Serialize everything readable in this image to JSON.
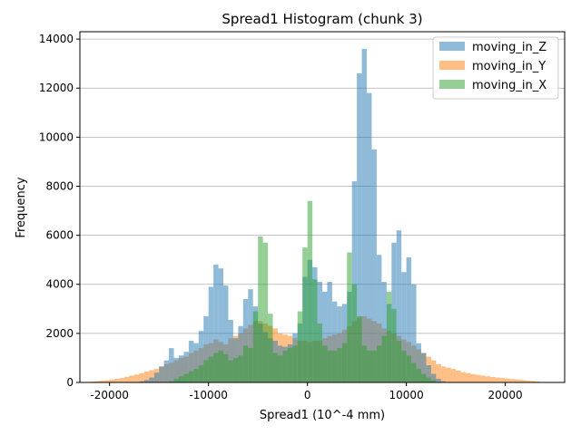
{
  "chart_data": {
    "type": "bar",
    "subtype": "histogram",
    "title": "Spread1 Histogram (chunk 3)",
    "xlabel": "Spread1 (10^-4 mm)",
    "ylabel": "Frequency",
    "xlim": [
      -23000,
      26000
    ],
    "ylim": [
      0,
      14300
    ],
    "xticks": [
      -20000,
      -10000,
      0,
      10000,
      20000
    ],
    "yticks": [
      0,
      2000,
      4000,
      6000,
      8000,
      10000,
      12000,
      14000
    ],
    "grid": "y",
    "legend_position": "top-right",
    "bin_width": 500,
    "series": [
      {
        "name": "moving_in_Z",
        "color": "#1f77b4",
        "opacity": 0.5,
        "bins": [
          [
            -17000,
            50
          ],
          [
            -16500,
            100
          ],
          [
            -16000,
            200
          ],
          [
            -15500,
            400
          ],
          [
            -15000,
            650
          ],
          [
            -14500,
            900
          ],
          [
            -14000,
            1400
          ],
          [
            -13500,
            1000
          ],
          [
            -13000,
            1100
          ],
          [
            -12500,
            1250
          ],
          [
            -12000,
            1700
          ],
          [
            -11500,
            1600
          ],
          [
            -11000,
            2100
          ],
          [
            -10500,
            2700
          ],
          [
            -10000,
            3900
          ],
          [
            -9500,
            4800
          ],
          [
            -9000,
            4650
          ],
          [
            -8500,
            3950
          ],
          [
            -8000,
            2550
          ],
          [
            -7500,
            1800
          ],
          [
            -7000,
            2300
          ],
          [
            -6500,
            3400
          ],
          [
            -6000,
            3800
          ],
          [
            -5500,
            3100
          ],
          [
            -5000,
            2400
          ],
          [
            -4500,
            2050
          ],
          [
            -4000,
            1800
          ],
          [
            -3500,
            1700
          ],
          [
            -3000,
            1500
          ],
          [
            -2500,
            1450
          ],
          [
            -2000,
            1550
          ],
          [
            -1500,
            2000
          ],
          [
            -1000,
            2400
          ],
          [
            -500,
            4300
          ],
          [
            0,
            5000
          ],
          [
            500,
            4700
          ],
          [
            1000,
            4100
          ],
          [
            1500,
            3700
          ],
          [
            2000,
            4100
          ],
          [
            2500,
            3300
          ],
          [
            3000,
            3100
          ],
          [
            3500,
            3200
          ],
          [
            4000,
            3700
          ],
          [
            4500,
            8200
          ],
          [
            5000,
            12600
          ],
          [
            5500,
            13600
          ],
          [
            6000,
            11800
          ],
          [
            6500,
            9500
          ],
          [
            7000,
            5200
          ],
          [
            7500,
            4100
          ],
          [
            8000,
            3200
          ],
          [
            8500,
            5700
          ],
          [
            9000,
            6200
          ],
          [
            9500,
            4500
          ],
          [
            10000,
            5100
          ],
          [
            10500,
            4000
          ],
          [
            11000,
            1600
          ],
          [
            11500,
            1200
          ],
          [
            12000,
            700
          ],
          [
            12500,
            350
          ],
          [
            13000,
            150
          ],
          [
            13500,
            50
          ]
        ]
      },
      {
        "name": "moving_in_Y",
        "color": "#ff7f0e",
        "opacity": 0.5,
        "bins": [
          [
            -22000,
            30
          ],
          [
            -21500,
            50
          ],
          [
            -21000,
            70
          ],
          [
            -20500,
            90
          ],
          [
            -20000,
            120
          ],
          [
            -19500,
            150
          ],
          [
            -19000,
            180
          ],
          [
            -18500,
            230
          ],
          [
            -18000,
            280
          ],
          [
            -17500,
            320
          ],
          [
            -17000,
            380
          ],
          [
            -16500,
            450
          ],
          [
            -16000,
            500
          ],
          [
            -15500,
            550
          ],
          [
            -15000,
            650
          ],
          [
            -14500,
            750
          ],
          [
            -14000,
            800
          ],
          [
            -13500,
            900
          ],
          [
            -13000,
            1000
          ],
          [
            -12500,
            1050
          ],
          [
            -12000,
            1200
          ],
          [
            -11500,
            1300
          ],
          [
            -11000,
            1400
          ],
          [
            -10500,
            1550
          ],
          [
            -10000,
            1600
          ],
          [
            -9500,
            1750
          ],
          [
            -9000,
            1650
          ],
          [
            -8500,
            1550
          ],
          [
            -8000,
            1800
          ],
          [
            -7500,
            1900
          ],
          [
            -7000,
            2000
          ],
          [
            -6500,
            2200
          ],
          [
            -6000,
            2350
          ],
          [
            -5500,
            2500
          ],
          [
            -5000,
            2500
          ],
          [
            -4500,
            2400
          ],
          [
            -4000,
            2300
          ],
          [
            -3500,
            2200
          ],
          [
            -3000,
            2000
          ],
          [
            -2500,
            1950
          ],
          [
            -2000,
            1900
          ],
          [
            -1500,
            1800
          ],
          [
            -1000,
            1700
          ],
          [
            -500,
            1700
          ],
          [
            0,
            1650
          ],
          [
            500,
            1700
          ],
          [
            1000,
            1700
          ],
          [
            1500,
            1800
          ],
          [
            2000,
            1900
          ],
          [
            2500,
            1950
          ],
          [
            3000,
            2000
          ],
          [
            3500,
            2150
          ],
          [
            4000,
            2300
          ],
          [
            4500,
            2500
          ],
          [
            5000,
            2650
          ],
          [
            5500,
            2700
          ],
          [
            6000,
            2600
          ],
          [
            6500,
            2500
          ],
          [
            7000,
            2400
          ],
          [
            7500,
            2200
          ],
          [
            8000,
            2100
          ],
          [
            8500,
            2000
          ],
          [
            9000,
            1900
          ],
          [
            9500,
            1750
          ],
          [
            10000,
            1650
          ],
          [
            10500,
            1500
          ],
          [
            11000,
            1350
          ],
          [
            11500,
            1200
          ],
          [
            12000,
            1050
          ],
          [
            12500,
            900
          ],
          [
            13000,
            750
          ],
          [
            13500,
            650
          ],
          [
            14000,
            600
          ],
          [
            14500,
            550
          ],
          [
            15000,
            480
          ],
          [
            15500,
            420
          ],
          [
            16000,
            380
          ],
          [
            16500,
            340
          ],
          [
            17000,
            310
          ],
          [
            17500,
            280
          ],
          [
            18000,
            250
          ],
          [
            18500,
            220
          ],
          [
            19000,
            200
          ],
          [
            19500,
            180
          ],
          [
            20000,
            160
          ],
          [
            20500,
            140
          ],
          [
            21000,
            120
          ],
          [
            21500,
            100
          ],
          [
            22000,
            80
          ],
          [
            22500,
            60
          ],
          [
            23000,
            40
          ]
        ]
      },
      {
        "name": "moving_in_X",
        "color": "#2ca02c",
        "opacity": 0.5,
        "bins": [
          [
            -14000,
            50
          ],
          [
            -13500,
            150
          ],
          [
            -13000,
            250
          ],
          [
            -12500,
            350
          ],
          [
            -12000,
            450
          ],
          [
            -11500,
            550
          ],
          [
            -11000,
            700
          ],
          [
            -10500,
            900
          ],
          [
            -10000,
            1050
          ],
          [
            -9500,
            1200
          ],
          [
            -9000,
            1300
          ],
          [
            -8500,
            1150
          ],
          [
            -8000,
            900
          ],
          [
            -7500,
            1000
          ],
          [
            -7000,
            1100
          ],
          [
            -6500,
            1500
          ],
          [
            -6000,
            1400
          ],
          [
            -5500,
            2900
          ],
          [
            -5000,
            5950
          ],
          [
            -4500,
            5700
          ],
          [
            -4000,
            2800
          ],
          [
            -3500,
            1200
          ],
          [
            -3000,
            1100
          ],
          [
            -2500,
            1300
          ],
          [
            -2000,
            1400
          ],
          [
            -1500,
            1500
          ],
          [
            -1000,
            2900
          ],
          [
            -500,
            5500
          ],
          [
            0,
            7400
          ],
          [
            500,
            4200
          ],
          [
            1000,
            2400
          ],
          [
            1500,
            1500
          ],
          [
            2000,
            1300
          ],
          [
            2500,
            1300
          ],
          [
            3000,
            1400
          ],
          [
            3500,
            1600
          ],
          [
            4000,
            5300
          ],
          [
            4500,
            4000
          ],
          [
            5000,
            2700
          ],
          [
            5500,
            1500
          ],
          [
            6000,
            1300
          ],
          [
            6500,
            1300
          ],
          [
            7000,
            1500
          ],
          [
            7500,
            1900
          ],
          [
            8000,
            3700
          ],
          [
            8500,
            3000
          ],
          [
            9000,
            1700
          ],
          [
            9500,
            1300
          ],
          [
            10000,
            1100
          ],
          [
            10500,
            800
          ],
          [
            11000,
            550
          ],
          [
            11500,
            350
          ],
          [
            12000,
            200
          ],
          [
            12500,
            100
          ]
        ]
      }
    ]
  }
}
